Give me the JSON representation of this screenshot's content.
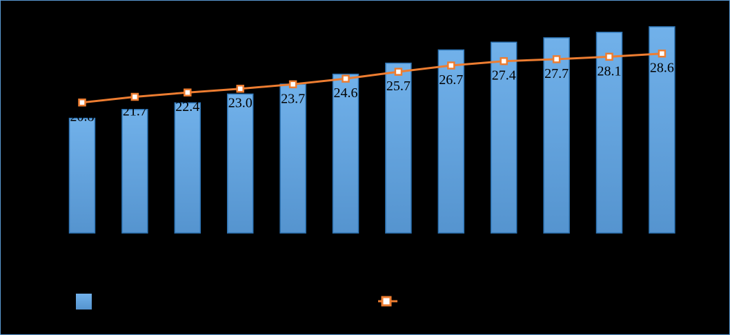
{
  "chart_data": {
    "type": "bar",
    "series": [
      {
        "kind": "bar",
        "color": "#5b9bd5",
        "values": [
          52.0,
          56.0,
          59.0,
          63.0,
          67.5,
          72.0,
          77.0,
          83.0,
          86.5,
          88.5,
          91.0,
          93.5
        ]
      },
      {
        "kind": "line",
        "color": "#ed7d31",
        "marker": "square",
        "values": [
          20.8,
          21.7,
          22.4,
          23.0,
          23.7,
          24.6,
          25.7,
          26.7,
          27.4,
          27.7,
          28.1,
          28.6
        ],
        "labels": [
          "20.8",
          "21.7",
          "22.4",
          "23.0",
          "23.7",
          "24.6",
          "25.7",
          "26.7",
          "27.4",
          "27.7",
          "28.1",
          "28.6"
        ]
      }
    ],
    "bar_ylim": [
      0,
      100
    ],
    "line_ylim": [
      0,
      40
    ],
    "grid": false,
    "legend": "bottom"
  }
}
